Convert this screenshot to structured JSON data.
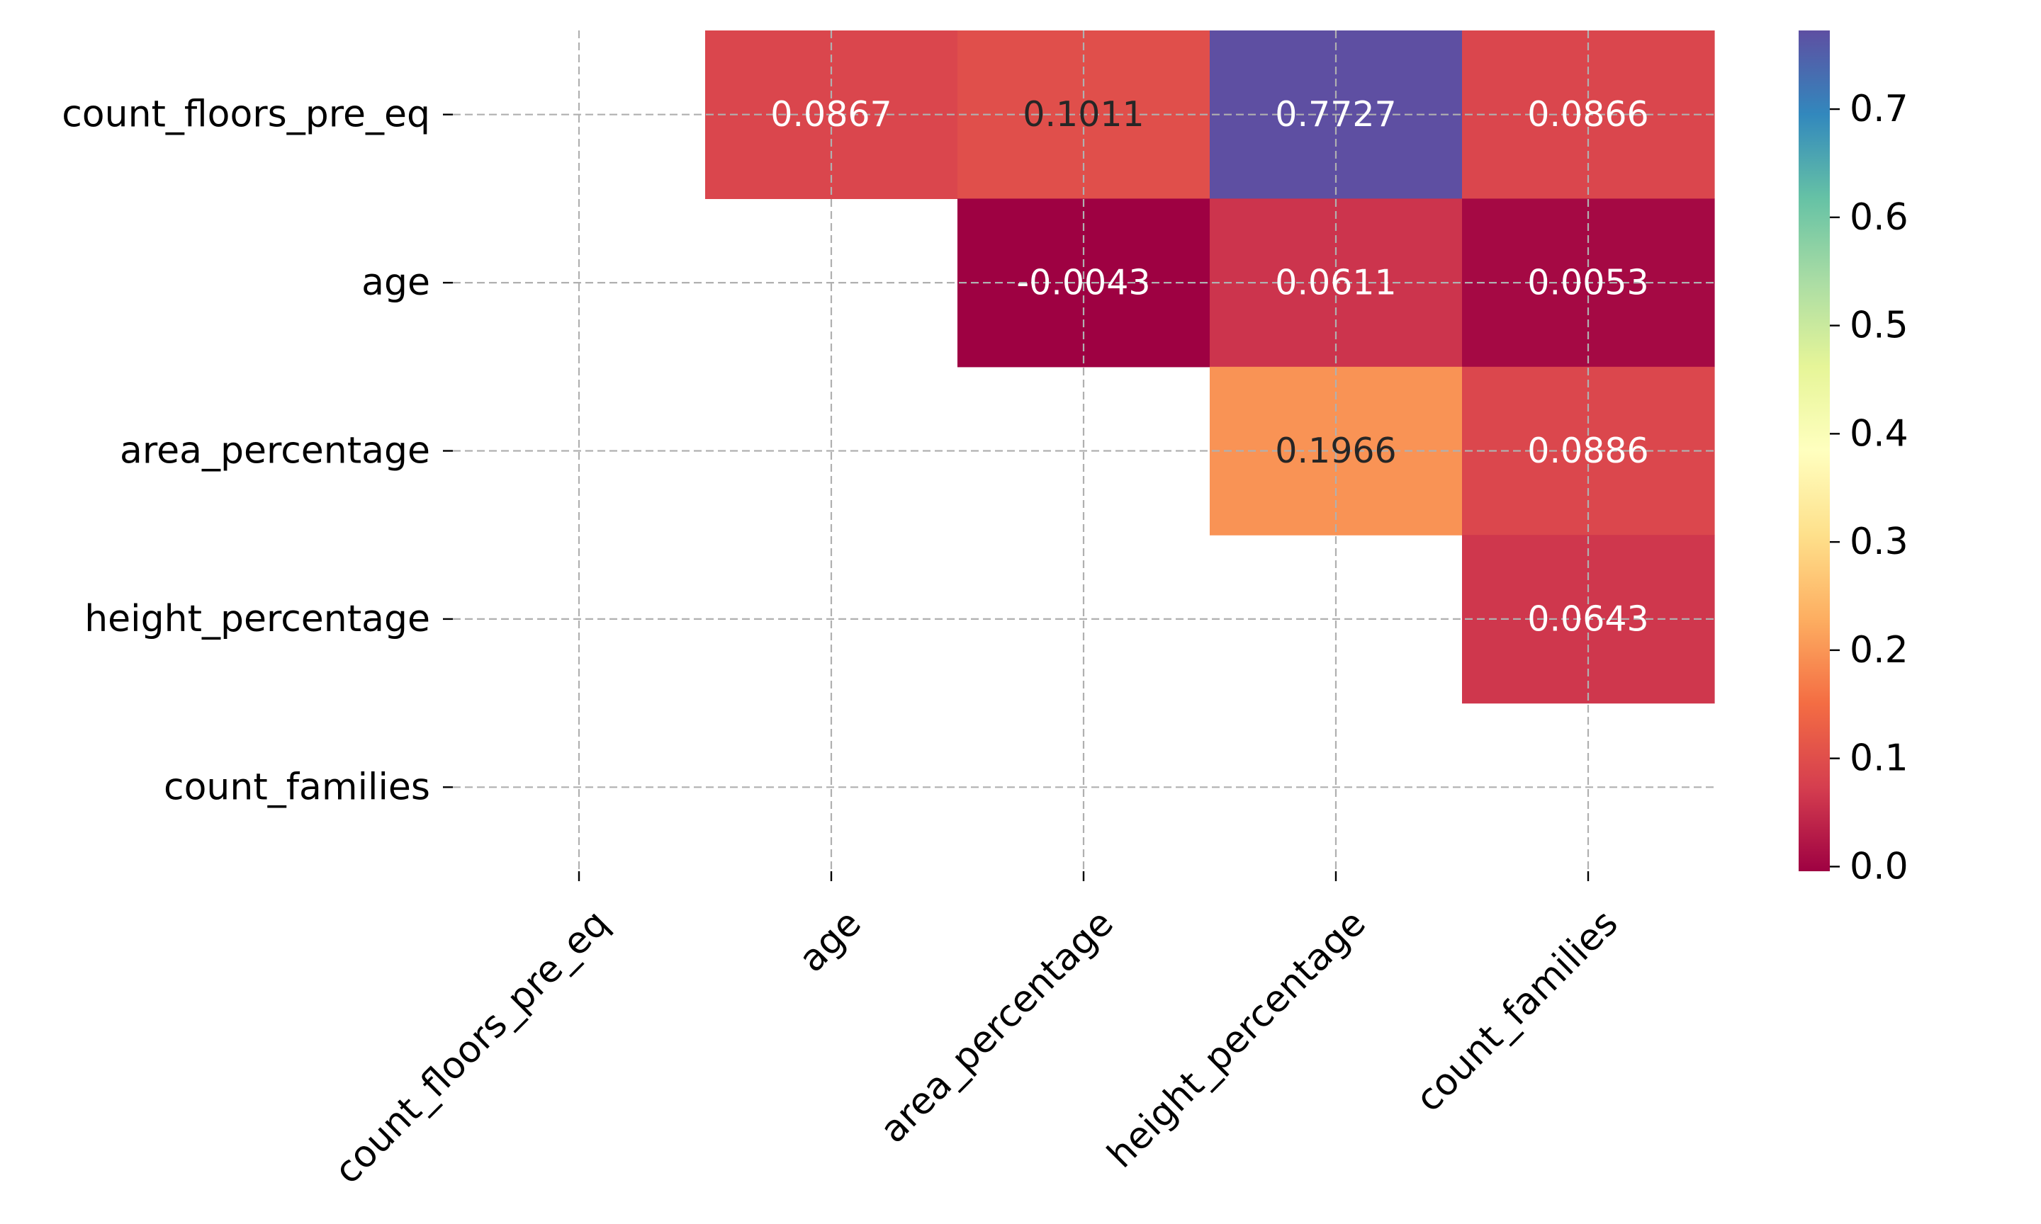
{
  "chart_data": {
    "type": "heatmap",
    "title": "",
    "xlabel": "",
    "ylabel": "",
    "rows": [
      "count_floors_pre_eq",
      "age",
      "area_percentage",
      "height_percentage",
      "count_families"
    ],
    "columns": [
      "count_floors_pre_eq",
      "age",
      "area_percentage",
      "height_percentage",
      "count_families"
    ],
    "values": [
      [
        null,
        0.0867,
        0.1011,
        0.7727,
        0.0866
      ],
      [
        null,
        null,
        -0.0043,
        0.0611,
        0.0053
      ],
      [
        null,
        null,
        null,
        0.1966,
        0.0886
      ],
      [
        null,
        null,
        null,
        null,
        0.0643
      ],
      [
        null,
        null,
        null,
        null,
        null
      ]
    ],
    "cell_labels": [
      [
        null,
        "0.0867",
        "0.1011",
        "0.7727",
        "0.0866"
      ],
      [
        null,
        null,
        "-0.0043",
        "0.0611",
        "0.0053"
      ],
      [
        null,
        null,
        null,
        "0.1966",
        "0.0886"
      ],
      [
        null,
        null,
        null,
        null,
        "0.0643"
      ],
      [
        null,
        null,
        null,
        null,
        null
      ]
    ],
    "colormap": "Spectral",
    "vmin": -0.0043,
    "vmax": 0.7727,
    "colorbar_ticks": [
      0.0,
      0.1,
      0.2,
      0.3,
      0.4,
      0.5,
      0.6,
      0.7
    ],
    "colorbar_tick_labels": [
      "0.0",
      "0.1",
      "0.2",
      "0.3",
      "0.4",
      "0.5",
      "0.6",
      "0.7"
    ],
    "grid": true,
    "annot_colors": {
      "light": "#ffffff",
      "dark": "#262626"
    }
  }
}
